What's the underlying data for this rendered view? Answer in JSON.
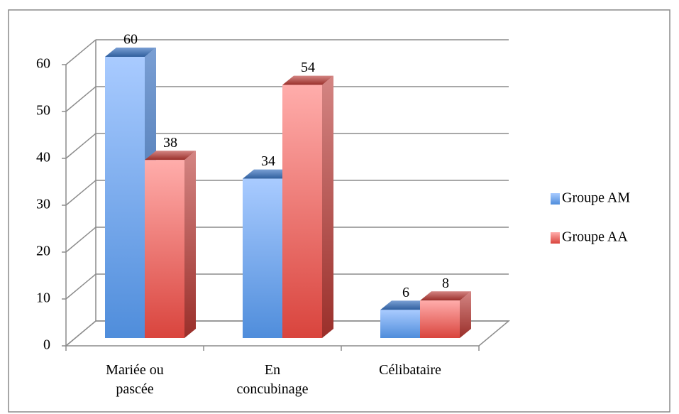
{
  "chart_data": {
    "type": "bar3d",
    "categories": [
      "Mariée ou pascée",
      "En concubinage",
      "Célibataire"
    ],
    "series": [
      {
        "name": "Groupe AM",
        "color": "#5b93de",
        "values": [
          60,
          34,
          6
        ]
      },
      {
        "name": "Groupe AA",
        "color": "#e0514b",
        "values": [
          38,
          54,
          8
        ]
      }
    ],
    "ylim": [
      0,
      60
    ],
    "yticks": [
      0,
      10,
      20,
      30,
      40,
      50,
      60
    ],
    "grid": true,
    "legend": "right"
  }
}
